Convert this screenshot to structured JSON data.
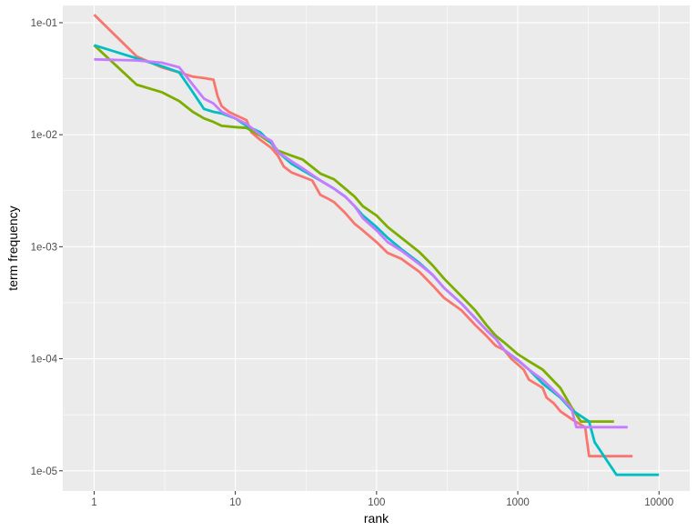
{
  "chart_data": {
    "type": "line",
    "xlabel": "rank",
    "ylabel": "term frequency",
    "x_scale": "log10",
    "y_scale": "log10",
    "xlim": [
      0.6,
      16500
    ],
    "ylim": [
      6.6e-06,
      0.1425
    ],
    "x_ticks": [
      {
        "value": 1,
        "label": "1"
      },
      {
        "value": 10,
        "label": "10"
      },
      {
        "value": 100,
        "label": "100"
      },
      {
        "value": 1000,
        "label": "1000"
      },
      {
        "value": 10000,
        "label": "10000"
      }
    ],
    "y_ticks": [
      {
        "value": 1e-05,
        "label": "1e-05"
      },
      {
        "value": 0.0001,
        "label": "1e-04"
      },
      {
        "value": 0.001,
        "label": "1e-03"
      },
      {
        "value": 0.01,
        "label": "1e-02"
      },
      {
        "value": 0.1,
        "label": "1e-01"
      }
    ],
    "grid": true,
    "legend": "none",
    "panel_background": "#ebebeb",
    "grid_color": "#ffffff",
    "series": [
      {
        "color": "#f8766d",
        "points": [
          [
            1,
            0.118
          ],
          [
            2,
            0.05
          ],
          [
            3,
            0.04
          ],
          [
            4,
            0.036
          ],
          [
            5,
            0.033
          ],
          [
            6,
            0.032
          ],
          [
            7,
            0.031
          ],
          [
            7.5,
            0.022
          ],
          [
            8,
            0.018
          ],
          [
            9,
            0.016
          ],
          [
            10,
            0.015
          ],
          [
            12,
            0.0135
          ],
          [
            13,
            0.0105
          ],
          [
            15,
            0.009
          ],
          [
            18,
            0.0076
          ],
          [
            20,
            0.0065
          ],
          [
            22,
            0.0052
          ],
          [
            25,
            0.0046
          ],
          [
            35,
            0.0039
          ],
          [
            40,
            0.0029
          ],
          [
            45,
            0.0027
          ],
          [
            50,
            0.0025
          ],
          [
            60,
            0.002
          ],
          [
            70,
            0.0016
          ],
          [
            80,
            0.0014
          ],
          [
            100,
            0.0011
          ],
          [
            120,
            0.00088
          ],
          [
            150,
            0.00078
          ],
          [
            200,
            0.0006
          ],
          [
            250,
            0.00045
          ],
          [
            300,
            0.00035
          ],
          [
            400,
            0.00027
          ],
          [
            500,
            0.0002
          ],
          [
            600,
            0.00016
          ],
          [
            700,
            0.00013
          ],
          [
            800,
            0.00012
          ],
          [
            900,
            0.0001
          ],
          [
            1100,
            8e-05
          ],
          [
            1200,
            6.5e-05
          ],
          [
            1500,
            5.5e-05
          ],
          [
            1600,
            4.5e-05
          ],
          [
            1800,
            4e-05
          ],
          [
            2000,
            3.4e-05
          ],
          [
            2500,
            2.8e-05
          ],
          [
            3000,
            2.45e-05
          ],
          [
            3200,
            1.35e-05
          ],
          [
            6500,
            1.35e-05
          ]
        ]
      },
      {
        "color": "#7cae00",
        "points": [
          [
            1,
            0.063
          ],
          [
            2,
            0.028
          ],
          [
            3,
            0.024
          ],
          [
            4,
            0.02
          ],
          [
            5,
            0.016
          ],
          [
            6,
            0.014
          ],
          [
            7,
            0.013
          ],
          [
            8,
            0.012
          ],
          [
            10,
            0.0117
          ],
          [
            12,
            0.0115
          ],
          [
            15,
            0.0098
          ],
          [
            18,
            0.0084
          ],
          [
            20,
            0.0072
          ],
          [
            25,
            0.0065
          ],
          [
            30,
            0.006
          ],
          [
            40,
            0.0045
          ],
          [
            50,
            0.004
          ],
          [
            60,
            0.0033
          ],
          [
            70,
            0.0028
          ],
          [
            80,
            0.0023
          ],
          [
            100,
            0.0019
          ],
          [
            120,
            0.0015
          ],
          [
            150,
            0.0012
          ],
          [
            200,
            0.0009
          ],
          [
            250,
            0.00068
          ],
          [
            300,
            0.00052
          ],
          [
            400,
            0.00036
          ],
          [
            500,
            0.00027
          ],
          [
            600,
            0.0002
          ],
          [
            700,
            0.00016
          ],
          [
            800,
            0.00014
          ],
          [
            1000,
            0.00011
          ],
          [
            1200,
            9.5e-05
          ],
          [
            1500,
            8e-05
          ],
          [
            2000,
            5.5e-05
          ],
          [
            2400,
            3.7e-05
          ],
          [
            2800,
            2.75e-05
          ],
          [
            4800,
            2.75e-05
          ]
        ]
      },
      {
        "color": "#00bfc4",
        "points": [
          [
            1,
            0.063
          ],
          [
            2,
            0.048
          ],
          [
            3,
            0.041
          ],
          [
            4,
            0.036
          ],
          [
            5,
            0.024
          ],
          [
            6,
            0.017
          ],
          [
            7,
            0.016
          ],
          [
            8,
            0.0155
          ],
          [
            10,
            0.014
          ],
          [
            12,
            0.012
          ],
          [
            15,
            0.0105
          ],
          [
            18,
            0.0084
          ],
          [
            20,
            0.007
          ],
          [
            25,
            0.0055
          ],
          [
            30,
            0.0048
          ],
          [
            40,
            0.0039
          ],
          [
            50,
            0.0033
          ],
          [
            60,
            0.0028
          ],
          [
            70,
            0.0023
          ],
          [
            80,
            0.0019
          ],
          [
            100,
            0.0015
          ],
          [
            120,
            0.0012
          ],
          [
            150,
            0.00095
          ],
          [
            200,
            0.00072
          ],
          [
            250,
            0.00056
          ],
          [
            300,
            0.00043
          ],
          [
            400,
            0.00031
          ],
          [
            500,
            0.00023
          ],
          [
            600,
            0.00018
          ],
          [
            700,
            0.00015
          ],
          [
            800,
            0.00012
          ],
          [
            1000,
            9.7e-05
          ],
          [
            1200,
            8e-05
          ],
          [
            1500,
            6e-05
          ],
          [
            2000,
            4.5e-05
          ],
          [
            2400,
            3.5e-05
          ],
          [
            3200,
            2.75e-05
          ],
          [
            3500,
            1.8e-05
          ],
          [
            5000,
            9.2e-06
          ],
          [
            10000,
            9.2e-06
          ]
        ]
      },
      {
        "color": "#c77cff",
        "points": [
          [
            1,
            0.047
          ],
          [
            2,
            0.046
          ],
          [
            3,
            0.044
          ],
          [
            4,
            0.04
          ],
          [
            5,
            0.028
          ],
          [
            6,
            0.021
          ],
          [
            7,
            0.019
          ],
          [
            8,
            0.016
          ],
          [
            10,
            0.014
          ],
          [
            12,
            0.0125
          ],
          [
            15,
            0.01
          ],
          [
            18,
            0.0088
          ],
          [
            20,
            0.007
          ],
          [
            25,
            0.0058
          ],
          [
            30,
            0.005
          ],
          [
            40,
            0.0039
          ],
          [
            50,
            0.0033
          ],
          [
            60,
            0.0028
          ],
          [
            70,
            0.0023
          ],
          [
            80,
            0.0018
          ],
          [
            100,
            0.0014
          ],
          [
            120,
            0.0011
          ],
          [
            150,
            0.00092
          ],
          [
            200,
            0.0007
          ],
          [
            250,
            0.00056
          ],
          [
            300,
            0.00043
          ],
          [
            400,
            0.00031
          ],
          [
            500,
            0.00023
          ],
          [
            600,
            0.00018
          ],
          [
            700,
            0.00015
          ],
          [
            800,
            0.00012
          ],
          [
            1000,
            9.8e-05
          ],
          [
            1200,
            8e-05
          ],
          [
            1500,
            6.5e-05
          ],
          [
            2000,
            4.6e-05
          ],
          [
            2400,
            3.6e-05
          ],
          [
            2600,
            2.45e-05
          ],
          [
            6000,
            2.45e-05
          ]
        ]
      }
    ]
  }
}
